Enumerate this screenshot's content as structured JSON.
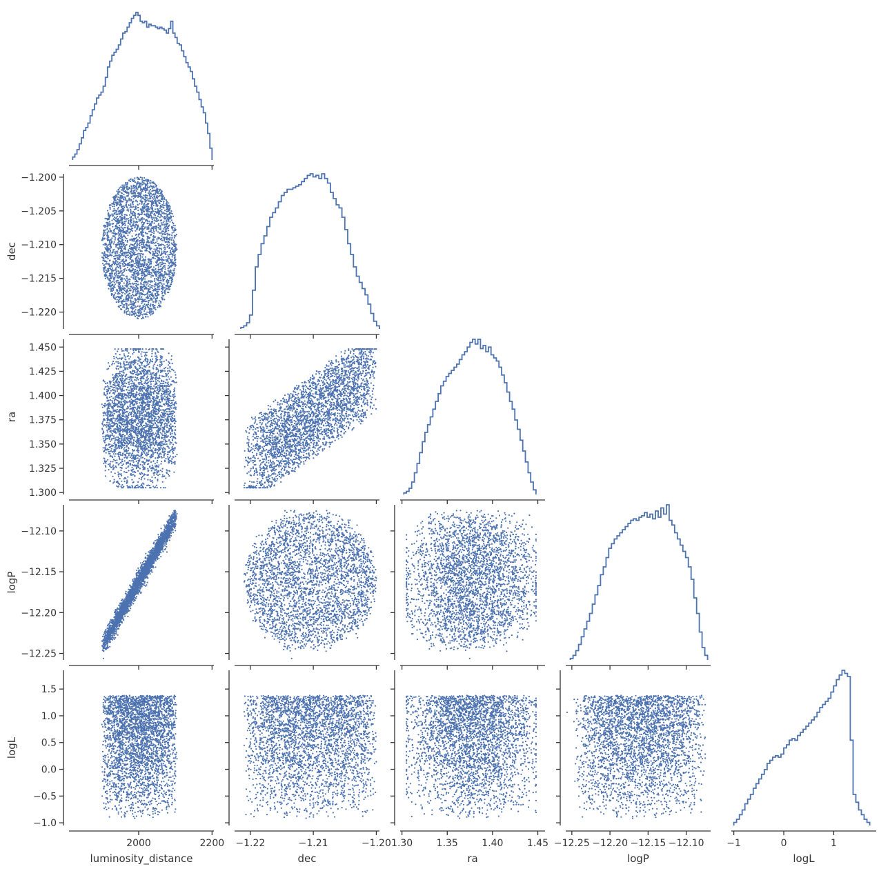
{
  "chart_data": {
    "type": "corner",
    "title": "",
    "variables": [
      "luminosity_distance",
      "dec",
      "ra",
      "logP",
      "logL"
    ],
    "color": "#4c72b0",
    "axis_color": "#333333",
    "background": "#ffffff",
    "grid": false,
    "legend": "none",
    "ranges": {
      "luminosity_distance": [
        1810,
        2205
      ],
      "dec": [
        -1.2225,
        -1.1995
      ],
      "ra": [
        1.298,
        1.458
      ],
      "logP": [
        -12.258,
        -12.068
      ],
      "logL": [
        -1.05,
        1.85
      ]
    },
    "ticks": {
      "luminosity_distance": [
        2000,
        2200
      ],
      "dec": [
        -1.22,
        -1.21,
        -1.2
      ],
      "ra": [
        1.3,
        1.35,
        1.4,
        1.45
      ],
      "logP": [
        -12.25,
        -12.2,
        -12.15,
        -12.1
      ],
      "logL": [
        -1,
        0,
        1
      ]
    },
    "tick_labels": {
      "luminosity_distance": [
        "2000",
        "2200"
      ],
      "dec_x": [
        "−1.22",
        "−1.21",
        "−1.20"
      ],
      "dec_y": [
        "−1.200",
        "−1.205",
        "−1.210",
        "−1.215",
        "−1.220"
      ],
      "ra_x": [
        "1.30",
        "1.35",
        "1.40",
        "1.45"
      ],
      "ra_y": [
        "1.450",
        "1.425",
        "1.400",
        "1.375",
        "1.350",
        "1.325",
        "1.300"
      ],
      "logP": [
        "−12.25",
        "−12.20",
        "−12.15",
        "−12.10"
      ],
      "logL_x": [
        "−1",
        "0",
        "1"
      ],
      "logL_y": [
        "1.5",
        "1.0",
        "0.5",
        "0.0",
        "−0.5",
        "−1.0"
      ]
    },
    "y_ticks": {
      "dec": [
        -1.2,
        -1.205,
        -1.21,
        -1.215,
        -1.22
      ],
      "ra": [
        1.45,
        1.425,
        1.4,
        1.375,
        1.35,
        1.325,
        1.3
      ],
      "logP": [
        -12.1,
        -12.15,
        -12.2,
        -12.25
      ],
      "logL": [
        1.5,
        1.0,
        0.5,
        0.0,
        -0.5,
        -1.0
      ]
    },
    "axis_labels": {
      "x": [
        "luminosity_distance",
        "dec",
        "ra",
        "logP",
        "logL"
      ],
      "y": [
        "dec",
        "ra",
        "logP",
        "logL"
      ]
    },
    "histograms": {
      "luminosity_distance": {
        "range": [
          1820,
          2200
        ],
        "density": [
          0.02,
          0.04,
          0.07,
          0.11,
          0.15,
          0.2,
          0.22,
          0.25,
          0.3,
          0.34,
          0.38,
          0.42,
          0.44,
          0.46,
          0.5,
          0.56,
          0.63,
          0.67,
          0.71,
          0.73,
          0.75,
          0.78,
          0.82,
          0.86,
          0.87,
          0.9,
          0.93,
          0.96,
          0.98,
          1.0,
          0.98,
          0.94,
          0.93,
          0.94,
          0.9,
          0.92,
          0.91,
          0.91,
          0.9,
          0.89,
          0.9,
          0.89,
          0.88,
          0.86,
          0.89,
          0.94,
          0.86,
          0.83,
          0.79,
          0.78,
          0.74,
          0.7,
          0.66,
          0.63,
          0.6,
          0.55,
          0.5,
          0.46,
          0.41,
          0.36,
          0.32,
          0.25,
          0.18,
          0.08
        ]
      },
      "dec": {
        "range": [
          -1.2215,
          -1.1995
        ],
        "density": [
          0.01,
          0.02,
          0.04,
          0.09,
          0.25,
          0.4,
          0.48,
          0.55,
          0.6,
          0.66,
          0.72,
          0.75,
          0.78,
          0.82,
          0.86,
          0.88,
          0.9,
          0.9,
          0.91,
          0.92,
          0.93,
          0.95,
          0.97,
          0.99,
          1.0,
          0.98,
          0.99,
          0.97,
          1.0,
          0.97,
          0.94,
          0.88,
          0.84,
          0.8,
          0.78,
          0.72,
          0.64,
          0.55,
          0.48,
          0.4,
          0.34,
          0.3,
          0.26,
          0.22,
          0.16,
          0.1,
          0.05,
          0.02
        ]
      },
      "ra": {
        "range": [
          1.302,
          1.448
        ],
        "density": [
          0.01,
          0.02,
          0.04,
          0.08,
          0.14,
          0.2,
          0.27,
          0.34,
          0.4,
          0.45,
          0.5,
          0.55,
          0.6,
          0.65,
          0.7,
          0.73,
          0.76,
          0.78,
          0.8,
          0.82,
          0.84,
          0.87,
          0.9,
          0.92,
          0.95,
          0.98,
          1.0,
          0.97,
          1.0,
          0.94,
          0.96,
          0.92,
          0.95,
          0.9,
          0.88,
          0.86,
          0.82,
          0.77,
          0.72,
          0.66,
          0.6,
          0.55,
          0.48,
          0.42,
          0.35,
          0.28,
          0.21,
          0.14,
          0.08,
          0.03
        ]
      },
      "logP": {
        "range": [
          -12.252,
          -12.072
        ],
        "density": [
          0.01,
          0.03,
          0.06,
          0.1,
          0.15,
          0.2,
          0.25,
          0.3,
          0.36,
          0.42,
          0.48,
          0.55,
          0.6,
          0.66,
          0.72,
          0.75,
          0.78,
          0.8,
          0.82,
          0.84,
          0.86,
          0.88,
          0.9,
          0.91,
          0.9,
          0.92,
          0.93,
          0.95,
          0.92,
          0.94,
          0.91,
          0.96,
          0.92,
          0.98,
          0.94,
          1.0,
          0.9,
          0.87,
          0.82,
          0.78,
          0.74,
          0.7,
          0.66,
          0.6,
          0.52,
          0.4,
          0.3,
          0.18,
          0.08,
          0.03
        ]
      },
      "logL": {
        "range": [
          -1.0,
          1.72
        ],
        "density": [
          0.02,
          0.04,
          0.07,
          0.1,
          0.14,
          0.17,
          0.2,
          0.24,
          0.27,
          0.3,
          0.33,
          0.36,
          0.4,
          0.42,
          0.44,
          0.45,
          0.44,
          0.46,
          0.5,
          0.52,
          0.55,
          0.56,
          0.55,
          0.58,
          0.6,
          0.62,
          0.64,
          0.66,
          0.68,
          0.7,
          0.73,
          0.76,
          0.78,
          0.8,
          0.82,
          0.86,
          0.9,
          0.94,
          0.97,
          1.0,
          0.98,
          0.96,
          0.55,
          0.2,
          0.15,
          0.1,
          0.07,
          0.04,
          0.02
        ]
      }
    },
    "scatter_samples": 3200
  }
}
